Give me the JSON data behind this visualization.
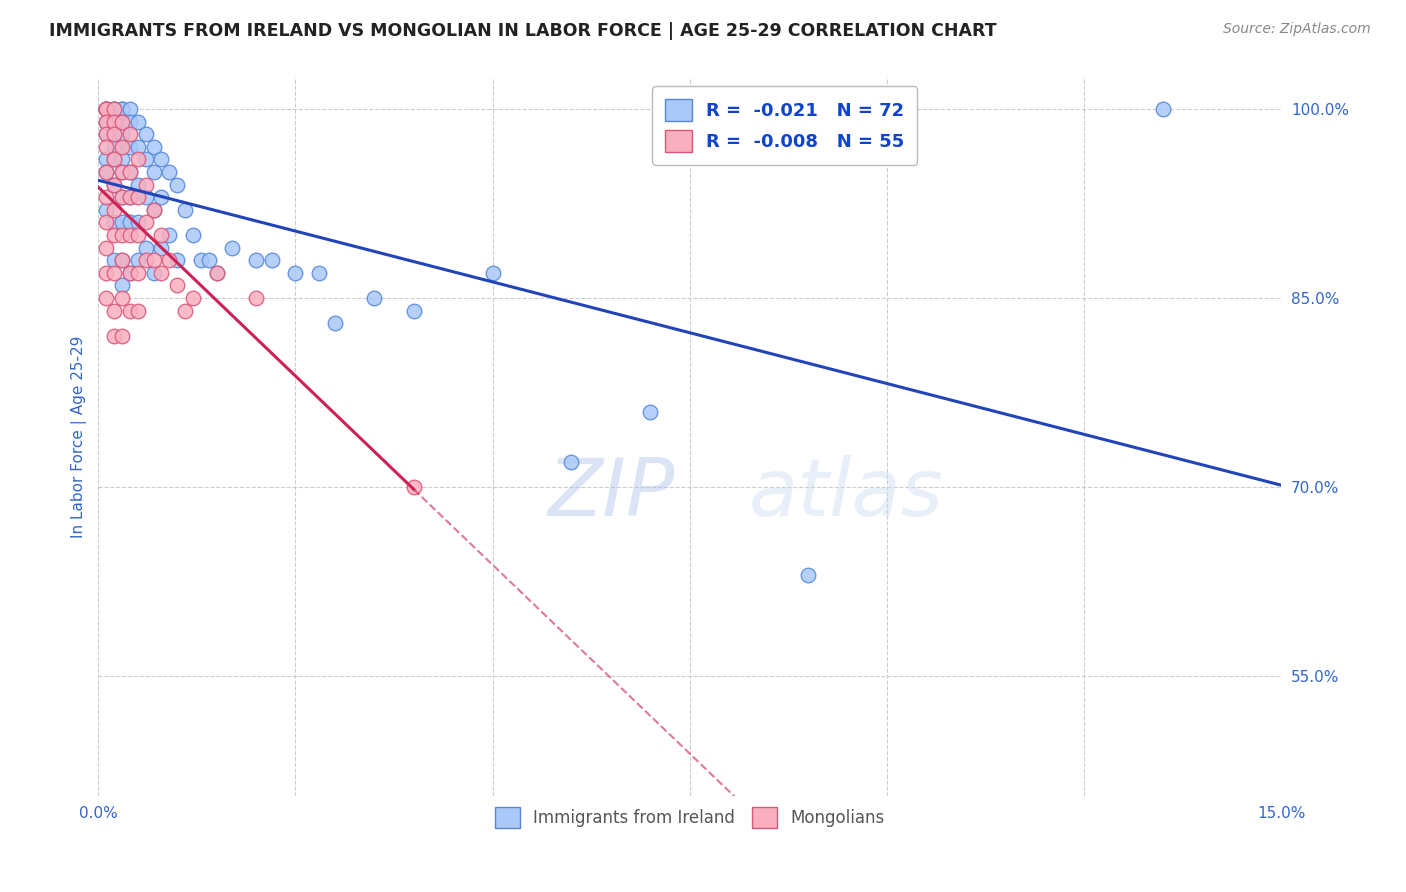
{
  "title": "IMMIGRANTS FROM IRELAND VS MONGOLIAN IN LABOR FORCE | AGE 25-29 CORRELATION CHART",
  "source": "Source: ZipAtlas.com",
  "ylabel": "In Labor Force | Age 25-29",
  "x_min": 0.0,
  "x_max": 0.15,
  "y_min": 0.455,
  "y_max": 1.025,
  "y_ticks": [
    0.55,
    0.7,
    0.85,
    1.0
  ],
  "y_tick_labels": [
    "55.0%",
    "70.0%",
    "85.0%",
    "100.0%"
  ],
  "ireland_R": "-0.021",
  "ireland_N": "72",
  "mongolia_R": "-0.008",
  "mongolia_N": "55",
  "ireland_color": "#aac8f8",
  "ireland_edge": "#5588dd",
  "mongolia_color": "#f8b0c0",
  "mongolia_edge": "#dd5577",
  "ireland_trend_color": "#2244bb",
  "mongolia_trend_color": "#cc2255",
  "mongolia_trend_solid_end": 0.04,
  "background_color": "#ffffff",
  "grid_color": "#cccccc",
  "title_color": "#222222",
  "axis_label_color": "#3366cc",
  "legend_text_color": "#1144cc",
  "watermark": "ZIPatlas",
  "ireland_x": [
    0.001,
    0.001,
    0.001,
    0.001,
    0.001,
    0.001,
    0.001,
    0.001,
    0.002,
    0.002,
    0.002,
    0.002,
    0.002,
    0.002,
    0.002,
    0.002,
    0.002,
    0.003,
    0.003,
    0.003,
    0.003,
    0.003,
    0.003,
    0.003,
    0.003,
    0.003,
    0.003,
    0.004,
    0.004,
    0.004,
    0.004,
    0.004,
    0.004,
    0.004,
    0.005,
    0.005,
    0.005,
    0.005,
    0.005,
    0.006,
    0.006,
    0.006,
    0.006,
    0.007,
    0.007,
    0.007,
    0.007,
    0.008,
    0.008,
    0.008,
    0.009,
    0.009,
    0.01,
    0.01,
    0.011,
    0.012,
    0.013,
    0.014,
    0.015,
    0.017,
    0.02,
    0.022,
    0.025,
    0.028,
    0.03,
    0.035,
    0.04,
    0.05,
    0.06,
    0.07,
    0.09,
    0.135
  ],
  "ireland_y": [
    1.0,
    1.0,
    1.0,
    0.99,
    0.98,
    0.96,
    0.95,
    0.92,
    1.0,
    1.0,
    0.99,
    0.98,
    0.97,
    0.96,
    0.94,
    0.91,
    0.88,
    1.0,
    1.0,
    0.99,
    0.98,
    0.96,
    0.95,
    0.93,
    0.91,
    0.88,
    0.86,
    1.0,
    0.99,
    0.97,
    0.95,
    0.93,
    0.91,
    0.87,
    0.99,
    0.97,
    0.94,
    0.91,
    0.88,
    0.98,
    0.96,
    0.93,
    0.89,
    0.97,
    0.95,
    0.92,
    0.87,
    0.96,
    0.93,
    0.89,
    0.95,
    0.9,
    0.94,
    0.88,
    0.92,
    0.9,
    0.88,
    0.88,
    0.87,
    0.89,
    0.88,
    0.88,
    0.87,
    0.87,
    0.83,
    0.85,
    0.84,
    0.87,
    0.72,
    0.76,
    0.63,
    1.0
  ],
  "mongolia_x": [
    0.001,
    0.001,
    0.001,
    0.001,
    0.001,
    0.001,
    0.001,
    0.001,
    0.001,
    0.001,
    0.001,
    0.001,
    0.002,
    0.002,
    0.002,
    0.002,
    0.002,
    0.002,
    0.002,
    0.002,
    0.002,
    0.002,
    0.003,
    0.003,
    0.003,
    0.003,
    0.003,
    0.003,
    0.003,
    0.003,
    0.004,
    0.004,
    0.004,
    0.004,
    0.004,
    0.004,
    0.005,
    0.005,
    0.005,
    0.005,
    0.005,
    0.006,
    0.006,
    0.006,
    0.007,
    0.007,
    0.008,
    0.008,
    0.009,
    0.01,
    0.011,
    0.012,
    0.015,
    0.02,
    0.04
  ],
  "mongolia_y": [
    1.0,
    1.0,
    1.0,
    0.99,
    0.98,
    0.97,
    0.95,
    0.93,
    0.91,
    0.89,
    0.87,
    0.85,
    1.0,
    0.99,
    0.98,
    0.96,
    0.94,
    0.92,
    0.9,
    0.87,
    0.84,
    0.82,
    0.99,
    0.97,
    0.95,
    0.93,
    0.9,
    0.88,
    0.85,
    0.82,
    0.98,
    0.95,
    0.93,
    0.9,
    0.87,
    0.84,
    0.96,
    0.93,
    0.9,
    0.87,
    0.84,
    0.94,
    0.91,
    0.88,
    0.92,
    0.88,
    0.9,
    0.87,
    0.88,
    0.86,
    0.84,
    0.85,
    0.87,
    0.85,
    0.7
  ]
}
